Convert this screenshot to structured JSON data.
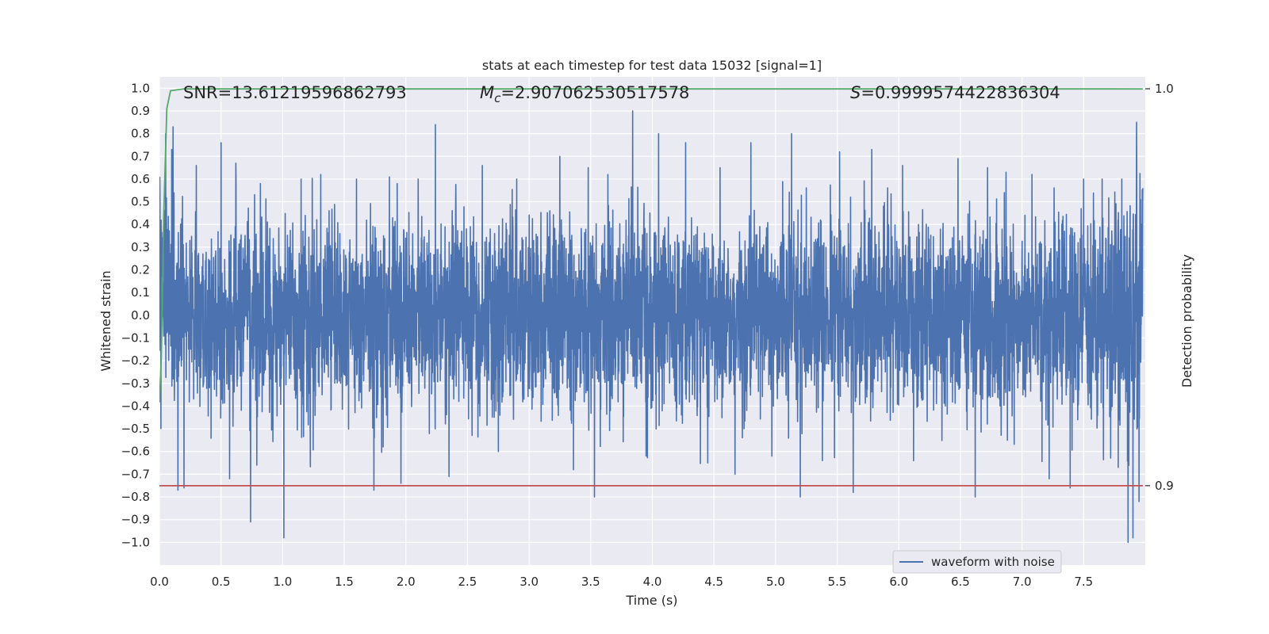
{
  "chart_data": {
    "type": "line",
    "title": "stats at each timestep for test data 15032 [signal=1]",
    "xlabel": "Time (s)",
    "ylabel": "Whitened strain",
    "ylabel_right": "Detection probability",
    "xlim": [
      0.0,
      8.0
    ],
    "ylim": [
      -1.1,
      1.05
    ],
    "ylim_right": [
      0.88,
      1.003
    ],
    "x_ticks": [
      "0.0",
      "0.5",
      "1.0",
      "1.5",
      "2.0",
      "2.5",
      "3.0",
      "3.5",
      "4.0",
      "4.5",
      "5.0",
      "5.5",
      "6.0",
      "6.5",
      "7.0",
      "7.5"
    ],
    "y_ticks": [
      "1.0",
      "0.9",
      "0.8",
      "0.7",
      "0.6",
      "0.5",
      "0.4",
      "0.3",
      "0.2",
      "0.1",
      "0.0",
      "−0.1",
      "−0.2",
      "−0.3",
      "−0.4",
      "−0.5",
      "−0.6",
      "−0.7",
      "−0.8",
      "−0.9",
      "−1.0"
    ],
    "y_ticks_right": [
      "1.0",
      "0.9"
    ],
    "grid": true,
    "legend": {
      "entries": [
        "waveform with noise"
      ],
      "placement": "bottom-center"
    },
    "annotations": {
      "snr": "SNR=13.61219596862793",
      "mc_symbol": "M",
      "mc_sub": "c",
      "mc_value": "=2.907062530517578",
      "s_symbol": "S",
      "s_value": "=0.9999574422836304"
    },
    "series": [
      {
        "name": "waveform with noise",
        "color": "#4c72b0",
        "x_range": [
          0.0,
          7.98
        ],
        "envelope_upper": [
          0.8,
          0.52,
          0.5,
          0.46,
          0.44,
          0.45,
          0.47,
          0.5,
          0.53,
          0.5,
          0.48,
          0.47,
          0.5,
          0.52,
          0.5,
          0.48,
          0.5,
          0.47,
          0.46,
          0.5,
          0.52,
          0.48,
          0.46,
          0.5,
          0.54,
          0.5,
          0.48,
          0.5,
          0.52,
          0.47,
          0.48,
          0.5,
          0.52,
          0.49,
          0.47,
          0.5,
          0.52,
          0.5,
          0.48,
          0.49,
          0.55,
          0.5,
          0.47,
          0.5,
          0.52,
          0.49,
          0.48,
          0.5,
          0.53,
          0.5,
          0.47,
          0.49,
          0.5,
          0.52,
          0.48,
          0.5,
          0.51,
          0.48,
          0.5,
          0.52,
          0.5,
          0.48,
          0.49,
          0.52,
          0.5,
          0.48,
          0.5,
          0.54,
          0.52,
          0.49,
          0.5,
          0.52,
          0.5,
          0.48,
          0.52,
          0.55,
          0.58,
          0.62,
          0.7,
          0.85
        ],
        "envelope_lower": [
          -0.48,
          -0.5,
          -0.48,
          -0.47,
          -0.5,
          -0.52,
          -0.48,
          -0.46,
          -0.5,
          -0.52,
          -0.47,
          -0.48,
          -0.5,
          -0.52,
          -0.49,
          -0.46,
          -0.48,
          -0.5,
          -0.53,
          -0.5,
          -0.47,
          -0.48,
          -0.5,
          -0.52,
          -0.49,
          -0.47,
          -0.5,
          -0.52,
          -0.5,
          -0.48,
          -0.49,
          -0.52,
          -0.5,
          -0.47,
          -0.48,
          -0.5,
          -0.53,
          -0.5,
          -0.48,
          -0.49,
          -0.5,
          -0.52,
          -0.5,
          -0.47,
          -0.49,
          -0.51,
          -0.5,
          -0.48,
          -0.5,
          -0.52,
          -0.49,
          -0.47,
          -0.5,
          -0.53,
          -0.5,
          -0.48,
          -0.49,
          -0.5,
          -0.52,
          -0.5,
          -0.48,
          -0.5,
          -0.52,
          -0.5,
          -0.47,
          -0.49,
          -0.5,
          -0.53,
          -0.5,
          -0.48,
          -0.5,
          -0.52,
          -0.5,
          -0.49,
          -0.5,
          -0.54,
          -0.56,
          -0.6,
          -0.68,
          -0.8
        ],
        "spikes": [
          [
            0.05,
            0.8
          ],
          [
            0.1,
            0.73
          ],
          [
            0.11,
            0.83
          ],
          [
            0.15,
            -0.77
          ],
          [
            0.2,
            -0.76
          ],
          [
            0.3,
            0.66
          ],
          [
            0.5,
            0.76
          ],
          [
            0.57,
            -0.72
          ],
          [
            0.62,
            0.67
          ],
          [
            0.74,
            -0.91
          ],
          [
            0.79,
            -0.66
          ],
          [
            0.82,
            0.58
          ],
          [
            1.01,
            0.75
          ],
          [
            1.01,
            -0.98
          ],
          [
            1.15,
            0.6
          ],
          [
            1.31,
            0.62
          ],
          [
            1.6,
            0.6
          ],
          [
            1.74,
            -0.77
          ],
          [
            1.93,
            0.58
          ],
          [
            1.96,
            -0.74
          ],
          [
            2.1,
            0.6
          ],
          [
            2.24,
            0.84
          ],
          [
            2.35,
            -0.71
          ],
          [
            2.62,
            0.66
          ],
          [
            2.75,
            -0.6
          ],
          [
            2.9,
            0.6
          ],
          [
            3.25,
            0.7
          ],
          [
            3.36,
            -0.68
          ],
          [
            3.48,
            0.65
          ],
          [
            3.53,
            -0.8
          ],
          [
            3.64,
            0.62
          ],
          [
            3.84,
            0.9
          ],
          [
            3.95,
            -0.62
          ],
          [
            4.05,
            0.8
          ],
          [
            4.27,
            0.76
          ],
          [
            4.45,
            -0.65
          ],
          [
            4.55,
            0.65
          ],
          [
            4.67,
            -0.7
          ],
          [
            4.8,
            0.76
          ],
          [
            4.97,
            -0.62
          ],
          [
            5.13,
            0.8
          ],
          [
            5.2,
            -0.8
          ],
          [
            5.38,
            -0.64
          ],
          [
            5.52,
            0.72
          ],
          [
            5.63,
            -0.78
          ],
          [
            5.78,
            0.73
          ],
          [
            6.03,
            0.66
          ],
          [
            6.12,
            -0.64
          ],
          [
            6.48,
            0.69
          ],
          [
            6.62,
            -0.8
          ],
          [
            6.72,
            0.65
          ],
          [
            6.87,
            0.63
          ],
          [
            7.08,
            0.62
          ],
          [
            7.22,
            -0.72
          ],
          [
            7.39,
            -0.76
          ],
          [
            7.5,
            0.6
          ],
          [
            7.65,
            0.6
          ],
          [
            7.78,
            -0.67
          ],
          [
            7.81,
            0.6
          ],
          [
            7.86,
            0.92
          ],
          [
            7.86,
            -1.0
          ],
          [
            7.9,
            -0.98
          ],
          [
            7.93,
            0.85
          ],
          [
            7.95,
            -0.82
          ],
          [
            7.98,
            0.56
          ]
        ]
      },
      {
        "name": "",
        "color": "#55a868",
        "axis": "right",
        "x": [
          0.0,
          0.015,
          0.035,
          0.06,
          0.09,
          0.2,
          0.5,
          1.0,
          2.0,
          3.0,
          4.0,
          5.0,
          6.0,
          7.0,
          7.98
        ],
        "y": [
          0.921,
          0.932,
          0.968,
          0.995,
          0.9995,
          0.99997,
          0.99997,
          0.99997,
          0.99997,
          0.99997,
          0.99997,
          0.99997,
          0.99997,
          0.99997,
          0.99996
        ]
      },
      {
        "name": "",
        "color": "#c44e52",
        "axis": "right",
        "x": [
          0.0,
          7.98
        ],
        "y": [
          0.9,
          0.9
        ]
      }
    ]
  }
}
